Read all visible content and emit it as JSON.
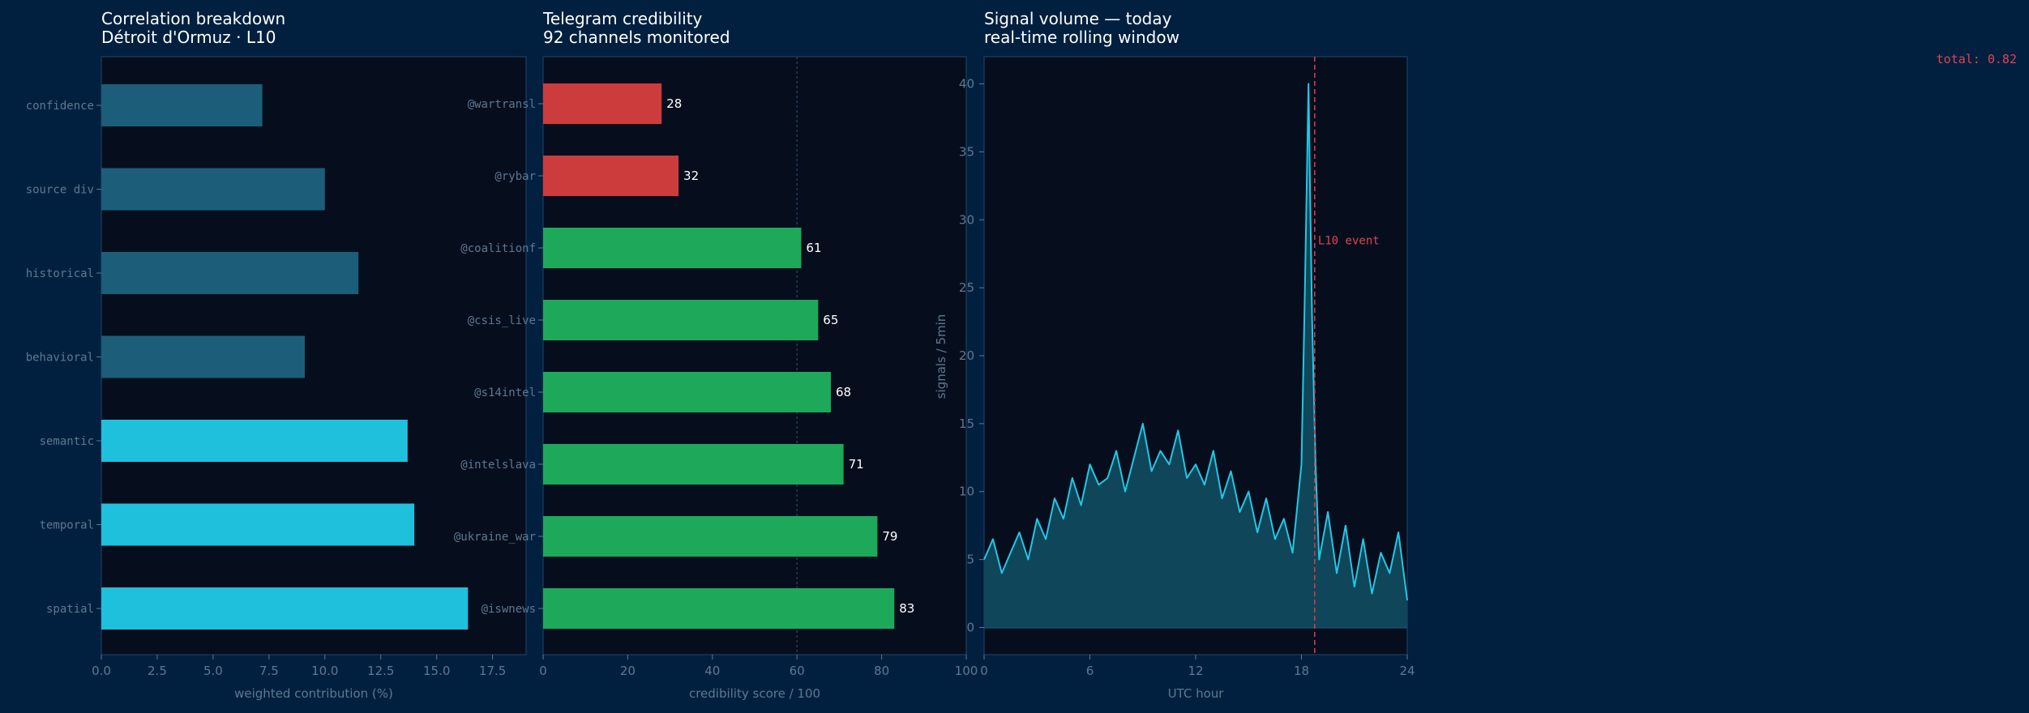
{
  "colors": {
    "background": "#01203f",
    "plot_bg": "#060e1e",
    "axis": "#24456a",
    "tick_text": "#5e7890",
    "title_text": "#ffffff",
    "bar_muted": "#1c5e79",
    "bar_bright": "#1fc0dc",
    "bar_red": "#cd3c3c",
    "bar_green": "#1ea95a",
    "line": "#21c8e6",
    "area": "#0f4659",
    "event_line": "#d23b48",
    "total_text": "#e0434f"
  },
  "total_label": "total: 0.82",
  "chart_data": [
    {
      "type": "bar",
      "orientation": "horizontal",
      "title": "Correlation breakdown",
      "subtitle": "Détroit d'Ormuz · L10",
      "xlabel": "weighted contribution (%)",
      "ylabel": "",
      "xlim": [
        0,
        19
      ],
      "xticks": [
        "0.0",
        "2.5",
        "5.0",
        "7.5",
        "10.0",
        "12.5",
        "15.0",
        "17.5"
      ],
      "xtick_values": [
        0,
        2.5,
        5,
        7.5,
        10,
        12.5,
        15,
        17.5
      ],
      "categories": [
        "confidence",
        "source div",
        "historical",
        "behavioral",
        "semantic",
        "temporal",
        "spatial"
      ],
      "values": [
        7.2,
        10.0,
        11.5,
        9.1,
        13.7,
        14.0,
        16.4
      ],
      "bar_colors": [
        "#1c5e79",
        "#1c5e79",
        "#1c5e79",
        "#1c5e79",
        "#1fc0dc",
        "#1fc0dc",
        "#1fc0dc"
      ]
    },
    {
      "type": "bar",
      "orientation": "horizontal",
      "title": "Telegram credibility",
      "subtitle": "92 channels monitored",
      "xlabel": "credibility score / 100",
      "ylabel": "",
      "xlim": [
        0,
        100
      ],
      "xticks": [
        "0",
        "20",
        "40",
        "60",
        "80",
        "100"
      ],
      "xtick_values": [
        0,
        20,
        40,
        60,
        80,
        100
      ],
      "threshold": 60,
      "categories": [
        "@wartransl",
        "@rybar",
        "@coalitionf",
        "@csis_live",
        "@s14intel",
        "@intelslava",
        "@ukraine_war",
        "@iswnews"
      ],
      "values": [
        28,
        32,
        61,
        65,
        68,
        71,
        79,
        83
      ],
      "value_labels": [
        "28",
        "32",
        "61",
        "65",
        "68",
        "71",
        "79",
        "83"
      ],
      "bar_colors": [
        "#cd3c3c",
        "#cd3c3c",
        "#1ea95a",
        "#1ea95a",
        "#1ea95a",
        "#1ea95a",
        "#1ea95a",
        "#1ea95a"
      ]
    },
    {
      "type": "area",
      "title": "Signal volume — today",
      "subtitle": "real-time rolling window",
      "xlabel": "UTC hour",
      "ylabel": "signals / 5min",
      "xlim": [
        0,
        24
      ],
      "ylim": [
        -2,
        42
      ],
      "xticks": [
        "0",
        "6",
        "12",
        "18",
        "24"
      ],
      "xtick_values": [
        0,
        6,
        12,
        18,
        24
      ],
      "yticks": [
        "0",
        "5",
        "10",
        "15",
        "20",
        "25",
        "30",
        "35",
        "40"
      ],
      "ytick_values": [
        0,
        5,
        10,
        15,
        20,
        25,
        30,
        35,
        40
      ],
      "event": {
        "label": "L10 event",
        "x": 18.75
      },
      "series": [
        {
          "name": "signals",
          "x": [
            0,
            0.5,
            1,
            1.5,
            2,
            2.5,
            3,
            3.5,
            4,
            4.5,
            5,
            5.5,
            6,
            6.5,
            7,
            7.5,
            8,
            8.5,
            9,
            9.5,
            10,
            10.5,
            11,
            11.5,
            12,
            12.5,
            13,
            13.5,
            14,
            14.5,
            15,
            15.5,
            16,
            16.5,
            17,
            17.5,
            18,
            18.2,
            18.4,
            18.5,
            18.6,
            18.8,
            19,
            19.5,
            20,
            20.5,
            21,
            21.5,
            22,
            22.5,
            23,
            23.5,
            24
          ],
          "y": [
            5,
            6.5,
            4,
            5.5,
            7,
            5,
            8,
            6.5,
            9.5,
            8,
            11,
            9,
            12,
            10.5,
            11,
            13,
            10,
            12.5,
            15,
            11.5,
            13,
            12,
            14.5,
            11,
            12,
            10.5,
            13,
            9.5,
            11.5,
            8.5,
            10,
            7,
            9.5,
            6.5,
            8,
            5.5,
            12,
            25,
            40,
            31,
            23,
            12,
            5,
            8.5,
            4,
            7.5,
            3,
            6.5,
            2.5,
            5.5,
            4,
            7,
            2
          ]
        }
      ]
    }
  ]
}
